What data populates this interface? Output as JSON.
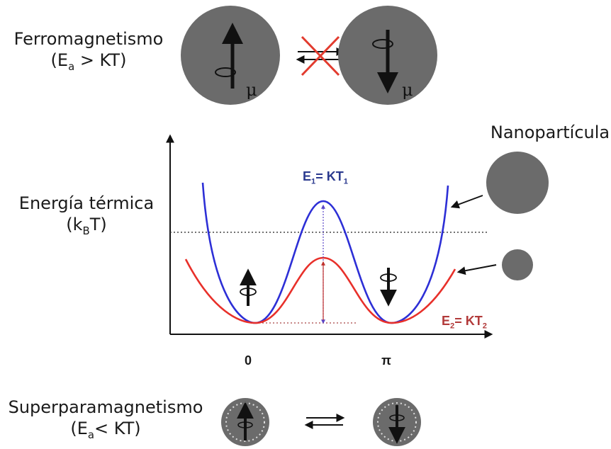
{
  "ferro": {
    "line1": "Ferromagnetismo",
    "cond_pre": "(E",
    "cond_sub": "a",
    "cond_post": " > KT)",
    "moment_symbol": "μ"
  },
  "thermal": {
    "line1": "Energía térmica",
    "cond_pre": "(k",
    "cond_sub": "B",
    "cond_post": "T)"
  },
  "nanoparticle_label": "Nanopartícula",
  "barriers": {
    "large": {
      "pre": "E",
      "sub1": "1",
      "mid": "= KT",
      "sub2": "1",
      "color": "#2b3a8f"
    },
    "small": {
      "pre": "E",
      "sub1": "2",
      "mid": "= KT",
      "sub2": "2",
      "color": "#b23a3a"
    }
  },
  "x_axis_ticks": [
    "0",
    "π"
  ],
  "superpara": {
    "line1": "Superparamagnetismo",
    "cond_pre": "(E",
    "cond_sub": "a",
    "cond_post": "< KT)"
  },
  "colors": {
    "particle": "#6b6b6b",
    "curve_large": "#2d2fd6",
    "curve_small": "#e8302a",
    "cross": "#e23b2e"
  },
  "icons": [
    "up-arrow-spin-icon",
    "down-arrow-spin-icon",
    "equilibrium-arrows-icon"
  ]
}
